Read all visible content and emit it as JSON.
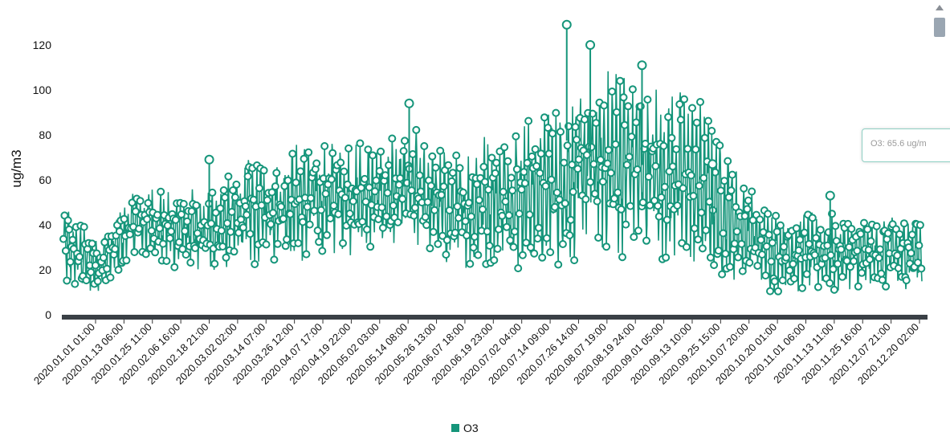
{
  "chart_data": {
    "type": "line",
    "ylabel": "ug/m3",
    "ylim": [
      0,
      130
    ],
    "y_ticks": [
      "0",
      "20",
      "40",
      "60",
      "80",
      "100",
      "120"
    ],
    "x_tick_labels": [
      "2020.01.01 01:00",
      "2020.01.13 06:00",
      "2020.01.25 11:00",
      "2020.02.06 16:00",
      "2020.02.18 21:00",
      "2020.03.02 02:00",
      "2020.03.14 07:00",
      "2020.03.26 12:00",
      "2020.04.07 17:00",
      "2020.04.19 22:00",
      "2020.05.02 03:00",
      "2020.05.14 08:00",
      "2020.05.26 13:00",
      "2020.06.07 18:00",
      "2020.06.19 23:00",
      "2020.07.02 04:00",
      "2020.07.14 09:00",
      "2020.07.26 14:00",
      "2020.08.07 19:00",
      "2020.08.19 24:00",
      "2020.09.01 05:00",
      "2020.09.13 10:00",
      "2020.09.25 15:00",
      "2020.10.07 20:00",
      "2020.10.20 01:00",
      "2020.11.01 06:00",
      "2020.11.13 11:00",
      "2020.11.25 16:00",
      "2020.12.07 21:00",
      "2020.12.20 02:00"
    ],
    "series": [
      {
        "name": "O3",
        "color": "#15957a",
        "envelope_x_days": [
          0,
          15,
          30,
          45,
          60,
          75,
          90,
          105,
          120,
          135,
          150,
          165,
          180,
          195,
          210,
          225,
          240,
          255,
          270,
          285,
          300,
          315,
          330,
          345,
          365
        ],
        "envelope_high": [
          52,
          33,
          58,
          58,
          55,
          72,
          76,
          78,
          80,
          78,
          85,
          70,
          82,
          88,
          94,
          108,
          112,
          104,
          98,
          68,
          48,
          46,
          45,
          44,
          46
        ],
        "envelope_low": [
          2,
          5,
          18,
          12,
          10,
          8,
          12,
          14,
          16,
          18,
          14,
          10,
          8,
          6,
          8,
          12,
          8,
          6,
          6,
          5,
          3,
          3,
          3,
          4,
          5
        ],
        "peaks": [
          {
            "day": 62,
            "value": 69
          },
          {
            "day": 147,
            "value": 94
          },
          {
            "day": 214,
            "value": 129
          },
          {
            "day": 224,
            "value": 120
          },
          {
            "day": 246,
            "value": 111
          },
          {
            "day": 276,
            "value": 67
          },
          {
            "day": 326,
            "value": 53
          }
        ]
      }
    ],
    "legend": {
      "position": "bottom-center"
    },
    "grid": false,
    "tooltip": "O3: 65.6 ug/m"
  }
}
